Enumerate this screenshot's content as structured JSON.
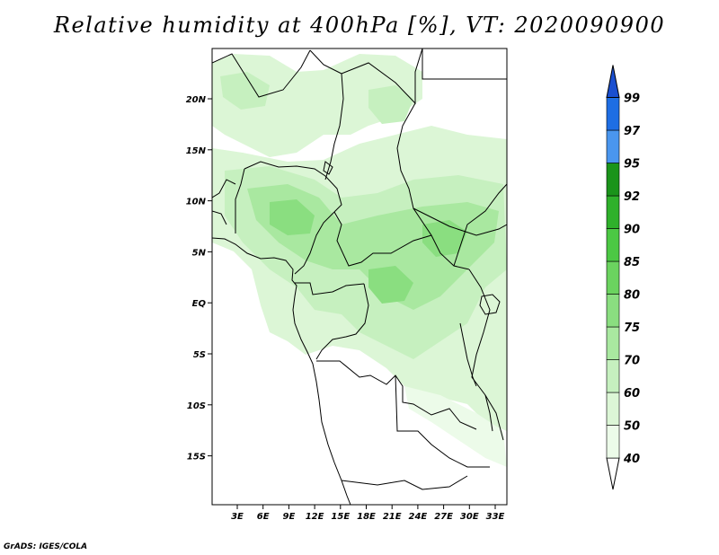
{
  "title": "Relative humidity at 400hPa [%], VT: 2020090900",
  "credit": "GrADS: IGES/COLA",
  "map": {
    "lon_range": [
      0,
      35
    ],
    "lat_range": [
      -20,
      25
    ],
    "lat_ticks": [
      "20N",
      "15N",
      "10N",
      "5N",
      "EQ",
      "5S",
      "10S",
      "15S"
    ],
    "lon_ticks": [
      "3E",
      "6E",
      "9E",
      "12E",
      "15E",
      "18E",
      "21E",
      "24E",
      "27E",
      "30E",
      "33E"
    ]
  },
  "colorbar": {
    "levels": [
      "40",
      "50",
      "60",
      "70",
      "75",
      "80",
      "85",
      "90",
      "92",
      "95",
      "97",
      "99"
    ],
    "colors": [
      "#ffffff",
      "#ecfbe9",
      "#dcf6d6",
      "#c6f0bf",
      "#a9e8a0",
      "#8ade80",
      "#6bd35f",
      "#4cc844",
      "#2fb12b",
      "#1a941a",
      "#4a96ee",
      "#1e6ee4",
      "#1a4fd0"
    ]
  }
}
